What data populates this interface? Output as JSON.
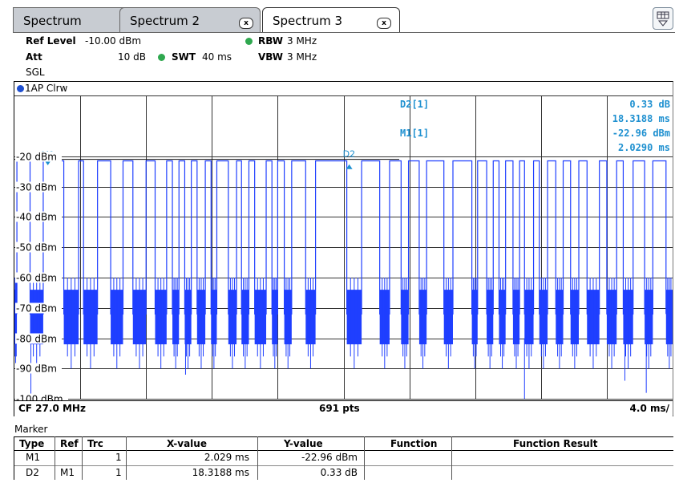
{
  "tabs": [
    {
      "label": "Spectrum",
      "closable": false,
      "active": false
    },
    {
      "label": "Spectrum 2",
      "closable": true,
      "active": false
    },
    {
      "label": "Spectrum 3",
      "closable": true,
      "active": true
    }
  ],
  "close_glyph": "x",
  "settings": {
    "ref_level_label": "Ref Level",
    "ref_level_value": "-10.00 dBm",
    "att_label": "Att",
    "att_value": "10 dB",
    "swt_label": "SWT",
    "swt_value": "40 ms",
    "rbw_label": "RBW",
    "rbw_value": "3 MHz",
    "vbw_label": "VBW",
    "vbw_value": "3 MHz",
    "mode": "SGL"
  },
  "trace_label": "1AP Clrw",
  "chart_data": {
    "type": "line",
    "series_name": "1AP Clrw",
    "y_ticks": [
      -20,
      -30,
      -40,
      -50,
      -60,
      -70,
      -80,
      -90,
      -100
    ],
    "y_tick_labels": [
      "-20 dBm",
      "-30 dBm",
      "-40 dBm",
      "-50 dBm",
      "-60 dBm",
      "-70 dBm",
      "-80 dBm",
      "-90 dBm",
      "-100 dBm"
    ],
    "ylim": [
      -110,
      -10
    ],
    "xlim_ms": [
      0,
      40
    ],
    "x_divisions": 10,
    "ref_line_dbm": -21,
    "burst_level_dbm": -21.5,
    "gap_level_dbm": -72,
    "burst_starts_ms": [
      0.15,
      1.75,
      3.9,
      5.05,
      6.6,
      8.0,
      9.25,
      10.0,
      10.75,
      11.6,
      12.3,
      13.5,
      14.25,
      15.3,
      16.0,
      16.85,
      18.3,
      21.1,
      22.8,
      23.95,
      25.05,
      26.65,
      28.15,
      29.1,
      29.85,
      30.7,
      31.55,
      32.4,
      33.35,
      34.3,
      35.55,
      36.6,
      37.6,
      38.8
    ],
    "burst_ends_ms": [
      0.95,
      3.0,
      4.2,
      5.85,
      7.2,
      8.55,
      9.6,
      10.35,
      11.1,
      11.95,
      13.0,
      13.8,
      14.6,
      15.65,
      16.4,
      17.7,
      20.2,
      22.2,
      23.5,
      24.6,
      26.1,
      27.8,
      28.7,
      29.45,
      30.3,
      31.0,
      31.9,
      32.9,
      33.8,
      34.8,
      36.0,
      37.0,
      38.3,
      39.6
    ],
    "deep_dips": [
      {
        "t": 1.0,
        "dbm": -100
      },
      {
        "t": 10.4,
        "dbm": -92
      },
      {
        "t": 31.0,
        "dbm": -100
      },
      {
        "t": 37.1,
        "dbm": -94
      },
      {
        "t": 38.4,
        "dbm": -98
      }
    ],
    "cf": "CF 27.0 MHz",
    "points": "691 pts",
    "span_per_div": "4.0 ms/"
  },
  "markers_overlay": {
    "m1_label": "M1",
    "d2_label": "D2",
    "m1_x_ms": 2.029,
    "m1_y_dbm": -22.96,
    "d2_x_ms": 20.3478,
    "d2_y_dbm": -22.63,
    "d2_readout_name": "D2[1]",
    "d2_readout_y": "0.33 dB",
    "d2_readout_x": "18.3188 ms",
    "m1_readout_name": "M1[1]",
    "m1_readout_y": "-22.96 dBm",
    "m1_readout_x": "2.0290 ms"
  },
  "colors": {
    "trace": "#1f3fff",
    "marker": "#1e90d0",
    "grid": "#333333",
    "tab_active": "#ffffff",
    "tab_inactive": "#c8ccd2",
    "settings_dot": "#2fa84f"
  },
  "marker_table": {
    "title": "Marker",
    "headers": [
      "Type",
      "Ref",
      "Trc",
      "X-value",
      "Y-value",
      "Function",
      "Function Result"
    ],
    "rows": [
      {
        "type": "M1",
        "ref": "",
        "trc": "1",
        "x": "2.029 ms",
        "y": "-22.96 dBm",
        "function": "",
        "result": ""
      },
      {
        "type": "D2",
        "ref": "M1",
        "trc": "1",
        "x": "18.3188 ms",
        "y": "0.33 dB",
        "function": "",
        "result": ""
      }
    ]
  }
}
